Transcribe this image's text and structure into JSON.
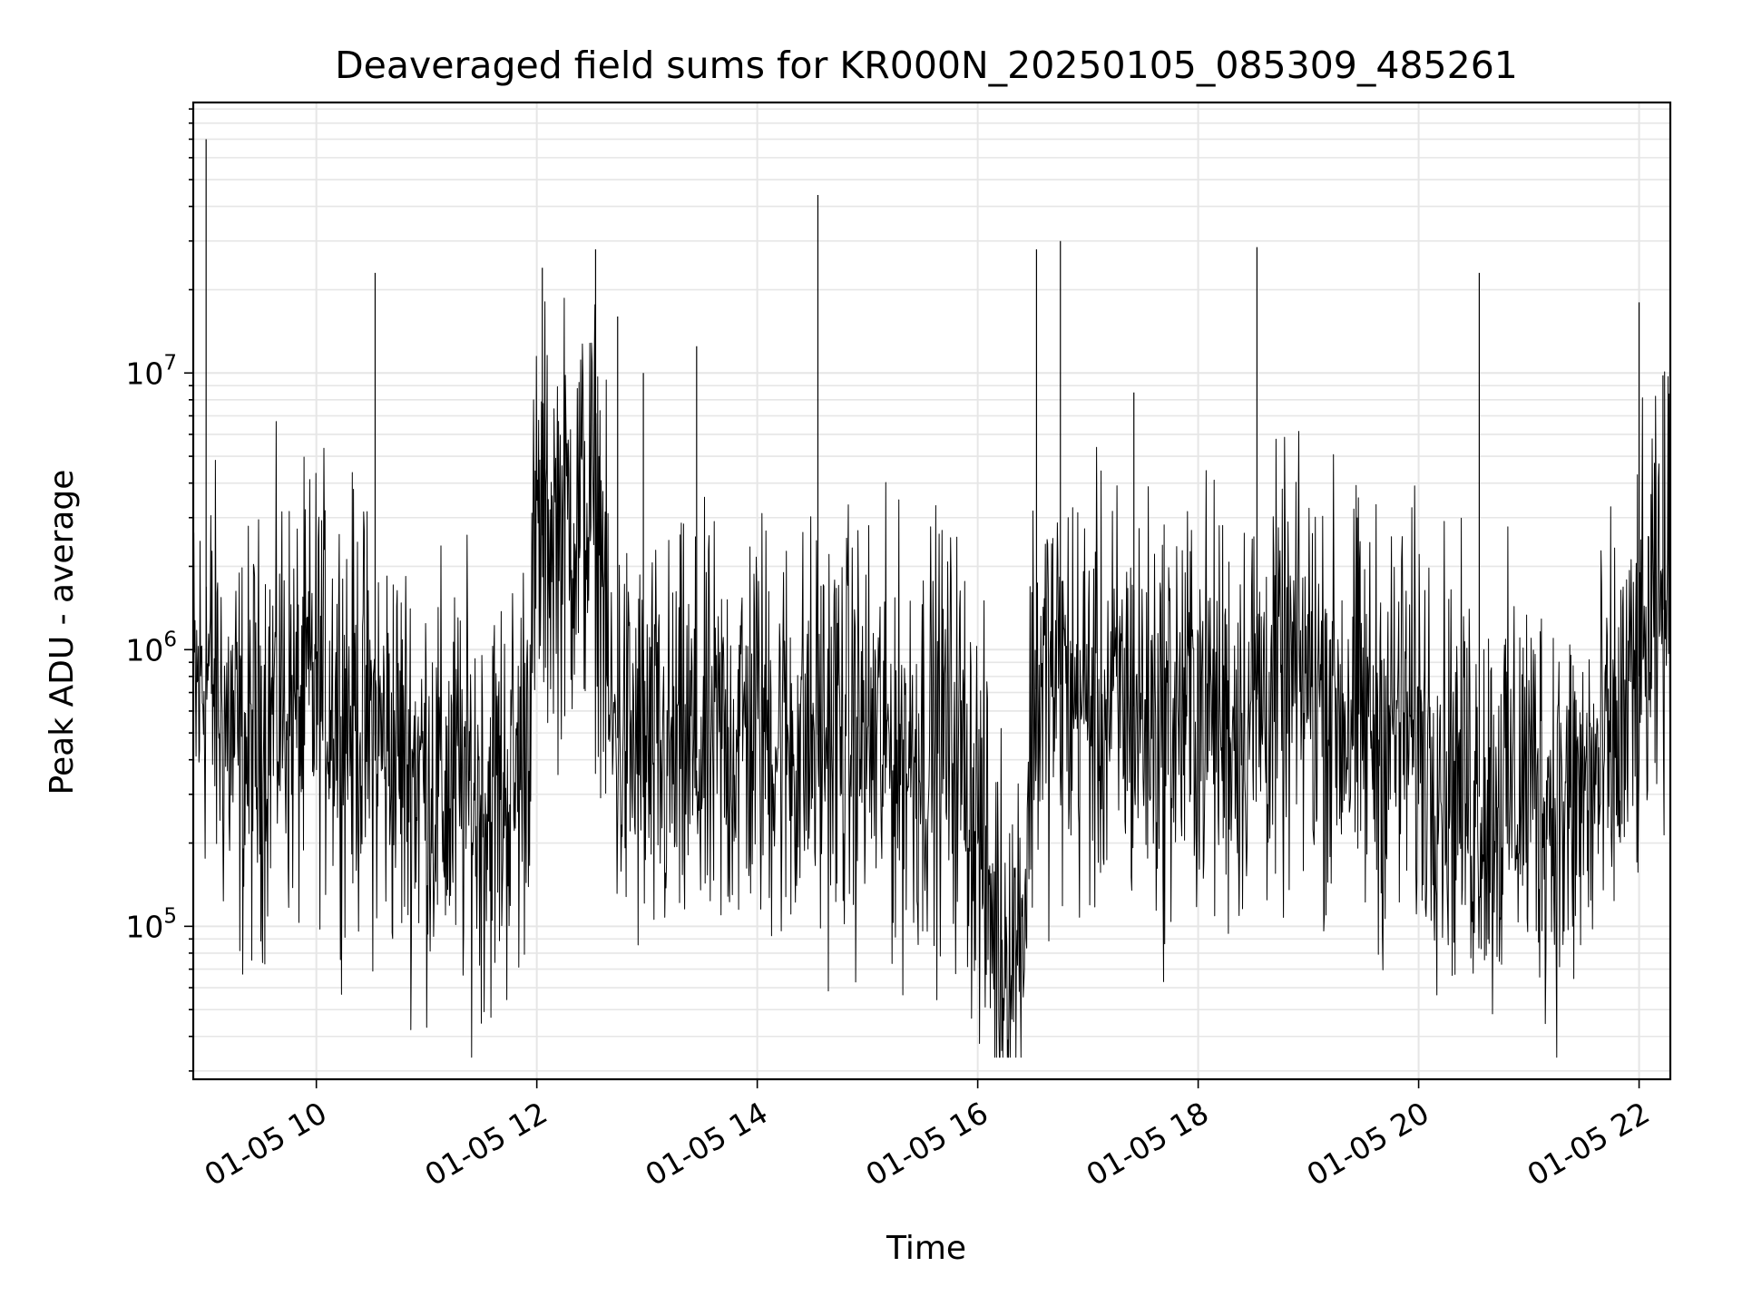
{
  "chart_data": {
    "type": "line",
    "title": "Deaveraged field sums for KR000N_20250105_085309_485261",
    "xlabel": "Time",
    "ylabel": "Peak ADU - average",
    "y_scale": "log",
    "ylim": [
      28000,
      95000000
    ],
    "xlim": [
      "01-05 08:53",
      "01-05 22:17"
    ],
    "grid": true,
    "line_color": "#000000",
    "grid_color": "#e6e6e6",
    "x_ticks": [
      "01-05 10",
      "01-05 12",
      "01-05 14",
      "01-05 16",
      "01-05 18",
      "01-05 20",
      "01-05 22"
    ],
    "y_ticks": [
      {
        "base": "10",
        "exp": "5",
        "value": 100000
      },
      {
        "base": "10",
        "exp": "6",
        "value": 1000000
      },
      {
        "base": "10",
        "exp": "7",
        "value": 10000000
      }
    ],
    "series": [
      {
        "x": [
          "01-05 08:53",
          "01-05 09:00",
          "01-05 09:10",
          "01-05 09:20",
          "01-05 09:30",
          "01-05 09:40",
          "01-05 09:50",
          "01-05 10:00",
          "01-05 10:10",
          "01-05 10:20",
          "01-05 10:30",
          "01-05 10:40",
          "01-05 10:50",
          "01-05 11:00",
          "01-05 11:10",
          "01-05 11:20",
          "01-05 11:30",
          "01-05 11:40",
          "01-05 11:50",
          "01-05 11:55",
          "01-05 12:00",
          "01-05 12:10",
          "01-05 12:20",
          "01-05 12:30",
          "01-05 12:35",
          "01-05 12:40",
          "01-05 12:50",
          "01-05 13:00",
          "01-05 13:10",
          "01-05 13:20",
          "01-05 13:30",
          "01-05 13:40",
          "01-05 13:50",
          "01-05 14:00",
          "01-05 14:10",
          "01-05 14:20",
          "01-05 14:30",
          "01-05 14:40",
          "01-05 14:50",
          "01-05 15:00",
          "01-05 15:10",
          "01-05 15:20",
          "01-05 15:30",
          "01-05 15:40",
          "01-05 15:50",
          "01-05 16:00",
          "01-05 16:10",
          "01-05 16:20",
          "01-05 16:25",
          "01-05 16:30",
          "01-05 16:40",
          "01-05 16:50",
          "01-05 17:00",
          "01-05 17:10",
          "01-05 17:20",
          "01-05 17:30",
          "01-05 17:40",
          "01-05 17:50",
          "01-05 18:00",
          "01-05 18:10",
          "01-05 18:20",
          "01-05 18:30",
          "01-05 18:40",
          "01-05 18:50",
          "01-05 19:00",
          "01-05 19:10",
          "01-05 19:20",
          "01-05 19:30",
          "01-05 19:40",
          "01-05 19:50",
          "01-05 20:00",
          "01-05 20:10",
          "01-05 20:20",
          "01-05 20:30",
          "01-05 20:40",
          "01-05 20:50",
          "01-05 21:00",
          "01-05 21:10",
          "01-05 21:20",
          "01-05 21:30",
          "01-05 21:40",
          "01-05 21:50",
          "01-05 22:00",
          "01-05 22:10",
          "01-05 22:17"
        ],
        "y": [
          600000,
          900000,
          550000,
          400000,
          500000,
          700000,
          550000,
          800000,
          700000,
          600000,
          500000,
          450000,
          400000,
          350000,
          300000,
          320000,
          280000,
          300000,
          350000,
          600000,
          2500000,
          2800000,
          3000000,
          3200000,
          2500000,
          500000,
          450000,
          400000,
          380000,
          420000,
          400000,
          450000,
          500000,
          550000,
          500000,
          450000,
          480000,
          520000,
          500000,
          480000,
          450000,
          420000,
          460000,
          500000,
          450000,
          250000,
          90000,
          80000,
          110000,
          700000,
          800000,
          700000,
          650000,
          600000,
          650000,
          600000,
          550000,
          600000,
          650000,
          600000,
          550000,
          650000,
          700000,
          750000,
          800000,
          700000,
          600000,
          550000,
          500000,
          550000,
          500000,
          450000,
          350000,
          300000,
          280000,
          320000,
          350000,
          300000,
          250000,
          300000,
          350000,
          500000,
          800000,
          1200000,
          1700000
        ]
      }
    ],
    "spikes": [
      {
        "x": "01-05 09:00",
        "y": 70000000
      },
      {
        "x": "01-05 10:32",
        "y": 23000000
      },
      {
        "x": "01-05 12:03",
        "y": 24000000
      },
      {
        "x": "01-05 12:32",
        "y": 28000000
      },
      {
        "x": "01-05 12:44",
        "y": 16000000
      },
      {
        "x": "01-05 12:58",
        "y": 10000000
      },
      {
        "x": "01-05 13:27",
        "y": 12500000
      },
      {
        "x": "01-05 14:33",
        "y": 44000000
      },
      {
        "x": "01-05 16:32",
        "y": 28000000
      },
      {
        "x": "01-05 16:45",
        "y": 30000000
      },
      {
        "x": "01-05 17:25",
        "y": 8500000
      },
      {
        "x": "01-05 18:32",
        "y": 28500000
      },
      {
        "x": "01-05 20:33",
        "y": 23000000
      },
      {
        "x": "01-05 22:00",
        "y": 18000000
      },
      {
        "x": "01-05 22:13",
        "y": 9800000
      }
    ]
  }
}
